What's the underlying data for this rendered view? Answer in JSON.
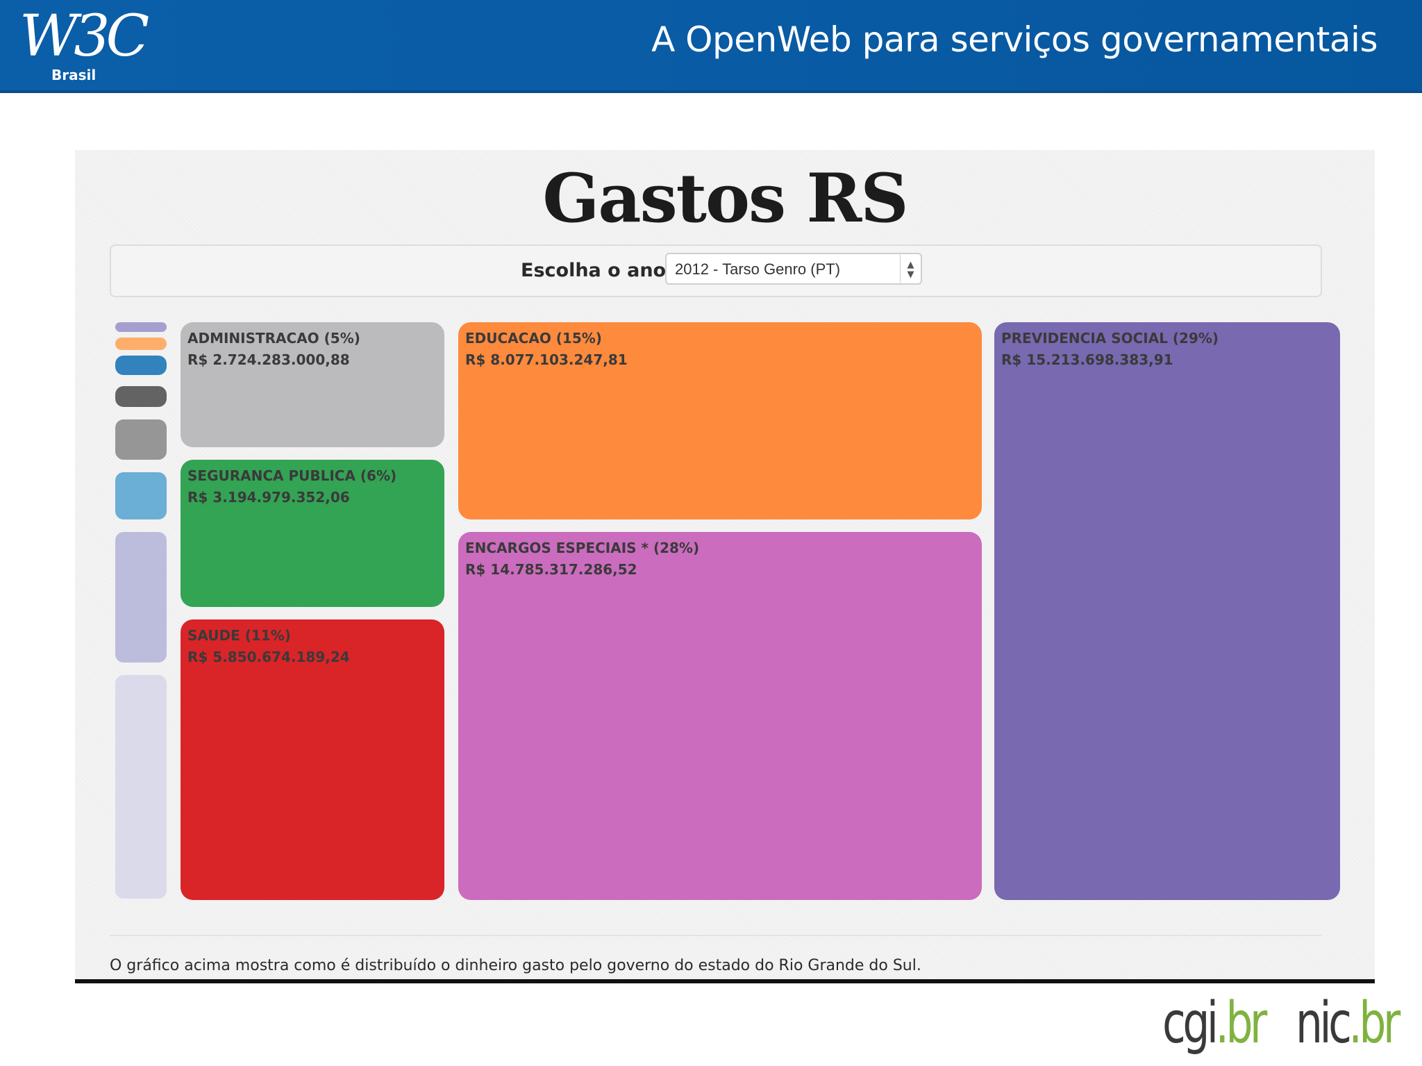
{
  "header": {
    "logo_main": "W3C",
    "logo_sub": "Brasil",
    "title": "A OpenWeb para serviços governamentais"
  },
  "app": {
    "title": "Gastos RS",
    "year_label": "Escolha o ano:",
    "year_selected": "2012 - Tarso Genro (PT)",
    "footer_note": "O gráfico acima mostra como é distribuído o dinheiro gasto pelo governo do estado do Rio Grande do Sul."
  },
  "treemap": {
    "tiles": [
      {
        "name": "ADMINISTRACAO (5%)",
        "value": "R$ 2.724.283.000,88",
        "color": "#bbbbbd"
      },
      {
        "name": "SEGURANCA PUBLICA (6%)",
        "value": "R$ 3.194.979.352,06",
        "color": "#33a354"
      },
      {
        "name": "SAUDE (11%)",
        "value": "R$ 5.850.674.189,24",
        "color": "#d92428"
      },
      {
        "name": "EDUCACAO (15%)",
        "value": "R$ 8.077.103.247,81",
        "color": "#fd8a3d"
      },
      {
        "name": "ENCARGOS ESPECIAIS * (28%)",
        "value": "R$ 14.785.317.286,52",
        "color": "#cb6cbe"
      },
      {
        "name": "PREVIDENCIA SOCIAL (29%)",
        "value": "R$ 15.213.698.383,91",
        "color": "#7869b0"
      }
    ],
    "legend_colors": [
      "#a59fd0",
      "#fdae6b",
      "#3182bd",
      "#636363",
      "#969696",
      "#6baed6",
      "#bcbddc",
      "#dadaeb"
    ]
  },
  "footer_logos": {
    "cgi_main": "cgi",
    "cgi_suffix": ".br",
    "nic_main": "nic",
    "nic_suffix": ".br"
  }
}
